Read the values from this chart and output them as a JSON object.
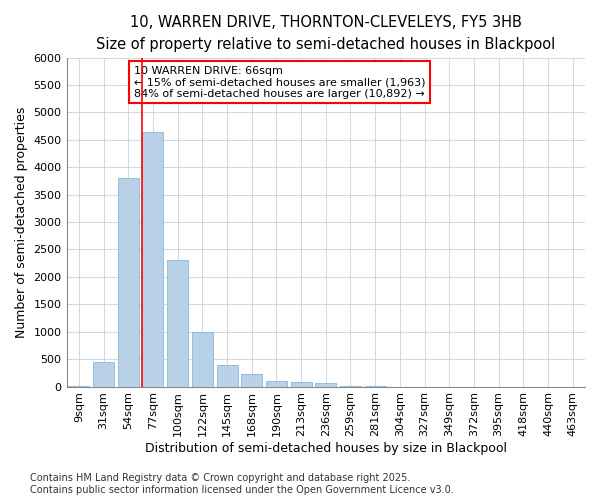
{
  "title1": "10, WARREN DRIVE, THORNTON-CLEVELEYS, FY5 3HB",
  "title2": "Size of property relative to semi-detached houses in Blackpool",
  "xlabel": "Distribution of semi-detached houses by size in Blackpool",
  "ylabel": "Number of semi-detached properties",
  "categories": [
    "9sqm",
    "31sqm",
    "54sqm",
    "77sqm",
    "100sqm",
    "122sqm",
    "145sqm",
    "168sqm",
    "190sqm",
    "213sqm",
    "236sqm",
    "259sqm",
    "281sqm",
    "304sqm",
    "327sqm",
    "349sqm",
    "372sqm",
    "395sqm",
    "418sqm",
    "440sqm",
    "463sqm"
  ],
  "values": [
    5,
    450,
    3800,
    4650,
    2300,
    1000,
    400,
    225,
    100,
    75,
    60,
    10,
    5,
    0,
    0,
    0,
    0,
    0,
    0,
    0,
    0
  ],
  "bar_color": "#b8d0e8",
  "bar_edge_color": "#7aadd0",
  "redline_x": 3.0,
  "redline_label": "10 WARREN DRIVE: 66sqm",
  "annotation_line1": "← 15% of semi-detached houses are smaller (1,963)",
  "annotation_line2": "84% of semi-detached houses are larger (10,892) →",
  "ylim": [
    0,
    6000
  ],
  "yticks": [
    0,
    500,
    1000,
    1500,
    2000,
    2500,
    3000,
    3500,
    4000,
    4500,
    5000,
    5500,
    6000
  ],
  "footnote1": "Contains HM Land Registry data © Crown copyright and database right 2025.",
  "footnote2": "Contains public sector information licensed under the Open Government Licence v3.0.",
  "bg_color": "#ffffff",
  "plot_bg_color": "#ffffff",
  "grid_color": "#d0d8e8",
  "title_fontsize": 10.5,
  "subtitle_fontsize": 9.5,
  "axis_fontsize": 9,
  "tick_fontsize": 8,
  "annot_fontsize": 8,
  "footnote_fontsize": 7
}
